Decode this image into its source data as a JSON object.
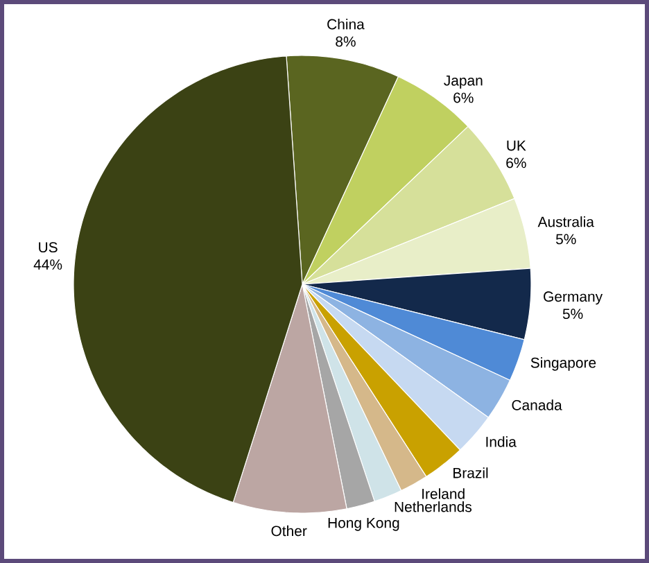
{
  "chart_data": {
    "type": "pie",
    "categories": [
      "China",
      "Japan",
      "UK",
      "Australia",
      "Germany",
      "Singapore",
      "Canada",
      "India",
      "Brazil",
      "Ireland",
      "Netherlands",
      "Hong Kong",
      "Other",
      "US"
    ],
    "values": [
      8,
      6,
      6,
      5,
      5,
      3,
      3,
      3,
      3,
      2,
      2,
      2,
      8,
      44
    ],
    "value_labels": [
      "8%",
      "6%",
      "6%",
      "5%",
      "5%",
      null,
      null,
      null,
      null,
      null,
      null,
      null,
      null,
      "44%"
    ],
    "colors": [
      "#5a6520",
      "#c0d060",
      "#d6e09a",
      "#e8eec8",
      "#13294b",
      "#4f8ad6",
      "#8db3e2",
      "#c6d9f1",
      "#c9a100",
      "#d5b88a",
      "#cfe3e8",
      "#a6a6a6",
      "#bca6a3",
      "#3b4214"
    ]
  }
}
